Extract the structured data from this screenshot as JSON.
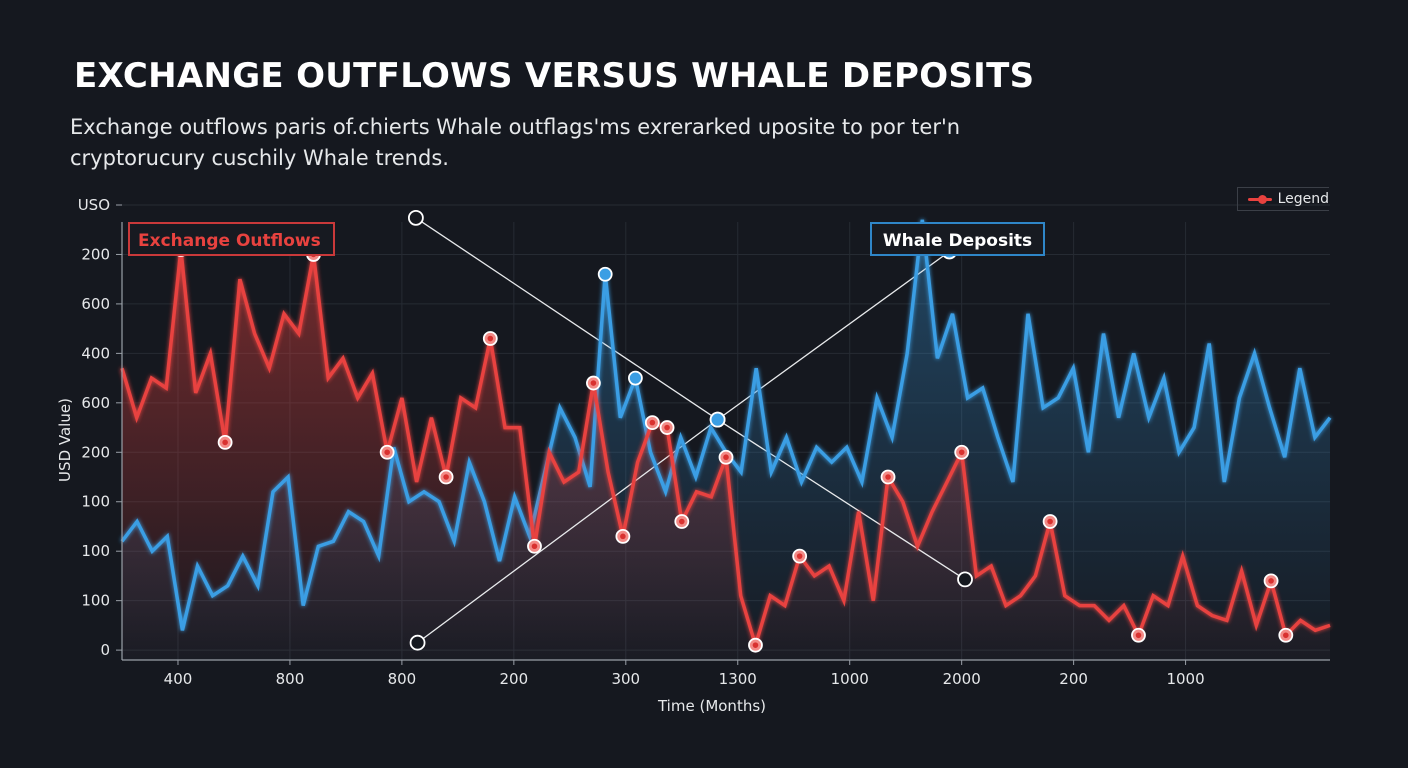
{
  "header": {
    "title": "EXCHANGE OUTFLOWS VERSUS WHALE DEPOSITS",
    "subtitle": "Exchange outflows paris of.chierts Whale outflags'ms exrerarked uposite to por ter'n cryptorucury cuschily Whale trends."
  },
  "legend": {
    "label": "Legend",
    "color": "#e8423f",
    "placement": "top-right"
  },
  "chart_data": {
    "type": "line",
    "title": "EXCHANGE OUTFLOWS VERSUS WHALE DEPOSITS",
    "xlabel": "Time (Months)",
    "ylabel": "USD Value)",
    "grid": true,
    "x_tick_labels": [
      "400",
      "800",
      "800",
      "200",
      "300",
      "1300",
      "1000",
      "2000",
      "200",
      "1000"
    ],
    "y_tick_labels": [
      "0",
      "100",
      "100",
      "100",
      "200",
      "600",
      "400",
      "600",
      "200",
      "USO"
    ],
    "xlim": [
      -0.5,
      10.29
    ],
    "ylim": [
      -0.2,
      9
    ],
    "series": [
      {
        "name": "Exchange Outflows",
        "color": "#e8423f",
        "values": [
          5.7,
          4.7,
          5.5,
          5.3,
          8.1,
          5.2,
          6.0,
          4.2,
          7.5,
          6.4,
          5.7,
          6.8,
          6.4,
          8.0,
          5.5,
          5.9,
          5.1,
          5.6,
          4.0,
          5.1,
          3.4,
          4.7,
          3.5,
          5.1,
          4.9,
          6.3,
          4.5,
          4.5,
          2.1,
          4.0,
          3.4,
          3.6,
          5.4,
          3.6,
          2.3,
          3.8,
          4.6,
          4.5,
          2.6,
          3.2,
          3.1,
          3.9,
          1.1,
          0.1,
          1.1,
          0.9,
          1.9,
          1.5,
          1.7,
          1.0,
          2.8,
          1.0,
          3.5,
          3.0,
          2.1,
          2.8,
          3.4,
          4.0,
          1.5,
          1.7,
          0.9,
          1.1,
          1.5,
          2.6,
          1.1,
          0.9,
          0.9,
          0.6,
          0.9,
          0.3,
          1.1,
          0.9,
          1.9,
          0.9,
          0.7,
          0.6,
          1.6,
          0.5,
          1.4,
          0.3,
          0.6,
          0.4,
          0.5
        ],
        "markers": [
          4,
          7,
          13,
          18,
          22,
          25,
          28,
          32,
          34,
          36,
          37,
          38,
          41,
          43,
          46,
          52,
          57,
          63,
          69,
          78,
          79
        ]
      },
      {
        "name": "Whale Deposits",
        "color": "#3a9ee4",
        "values": [
          2.2,
          2.6,
          2.0,
          2.3,
          0.4,
          1.7,
          1.1,
          1.3,
          1.9,
          1.3,
          3.2,
          3.5,
          0.9,
          2.1,
          2.2,
          2.8,
          2.6,
          1.9,
          4.1,
          3.0,
          3.2,
          3.0,
          2.2,
          3.8,
          3.0,
          1.8,
          3.1,
          2.3,
          3.6,
          4.9,
          4.3,
          3.3,
          7.6,
          4.7,
          5.5,
          4.0,
          3.2,
          4.3,
          3.5,
          4.5,
          4.0,
          3.6,
          5.7,
          3.6,
          4.3,
          3.4,
          4.1,
          3.8,
          4.1,
          3.4,
          5.1,
          4.3,
          6.0,
          8.7,
          5.9,
          6.8,
          5.1,
          5.3,
          4.3,
          3.4,
          6.8,
          4.9,
          5.1,
          5.7,
          4.0,
          6.4,
          4.7,
          6.0,
          4.7,
          5.5,
          4.0,
          4.5,
          6.2,
          3.4,
          5.1,
          6.0,
          4.9,
          3.9,
          5.7,
          4.3,
          4.7
        ],
        "markers": [
          32,
          34
        ]
      }
    ],
    "annotations": {
      "labels": [
        {
          "text": "Exchange Outflows",
          "color": "#e8423f"
        },
        {
          "text": "Whale Deposits",
          "color": "#3a9ee4"
        }
      ],
      "trend_lines": [
        {
          "points": [
            [
              2.125,
              8.74
            ],
            [
              4.82,
              4.66
            ],
            [
              7.03,
              1.43
            ]
          ],
          "end_markers": [
            "hollow",
            "blue",
            "hollow"
          ]
        },
        {
          "points": [
            [
              2.14,
              0.15
            ],
            [
              4.82,
              4.66
            ],
            [
              6.89,
              8.06
            ]
          ],
          "end_markers": [
            "hollow",
            "blue",
            "blue"
          ]
        }
      ]
    }
  }
}
